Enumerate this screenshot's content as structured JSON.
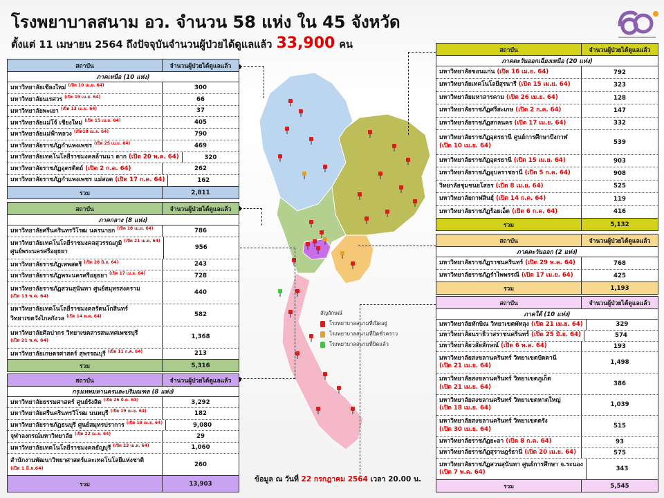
{
  "header": {
    "title": "โรงพยาบาลสนาม อว.  จำนวน 58 แห่ง ใน 45 จังหวัด",
    "subtitle_prefix": "ตั้งแต่  11 เมษายน 2564 ถึงปัจจุบันจำนวนผู้ป่วยได้ดูแลแล้ว",
    "total_patients": "33,900",
    "unit": "คน"
  },
  "column_headers": {
    "institution": "สถาบัน",
    "patients": "จำนวนผู้ป่วยได้ดูแลแล้ว",
    "total_label": "รวม"
  },
  "tables": {
    "north": {
      "color": "#b7cfe9",
      "region": "ภาคเหนือ (10 แห่ง)",
      "rows": [
        {
          "name": "มหาวิทยาลัยเชียงใหม่",
          "date": "(เปิด 10 เม.ย. 64)",
          "value": "300",
          "small": true
        },
        {
          "name": "มหาวิทยาลัยนเรศวร",
          "date": "(เปิด 19 เม.ย. 64)",
          "value": "66",
          "small": true
        },
        {
          "name": "มหาวิทยาลัยพะเยา",
          "date": "(เปิด 13 เม.ย. 64)",
          "value": "37",
          "small": true
        },
        {
          "name": "มหาวิทยาลัยแม่โจ้ เชียงใหม่",
          "date": "(เปิด 15 เม.ย. 64)",
          "value": "405",
          "small": true
        },
        {
          "name": "มหาวิทยาลัยแม่ฟ้าหลวง",
          "date": "(เปิด18 เม.ย. 64)",
          "value": "790",
          "small": true
        },
        {
          "name": "มหาวิทยาลัยราชภัฏกำแพงเพชร",
          "date": "(เปิด 25 เม.ย. 64)",
          "value": "469",
          "small": true
        },
        {
          "name": "มหาวิทยาลัยเทคโนโลยีราชมงคลล้านนา  ตาก",
          "date": "(เปิด 20 พ.ค. 64)",
          "value": "320"
        },
        {
          "name": "มหาวิทยาลัยราชภัฏอุตรดิตถ์",
          "date": "(เปิด 2 ก.ค. 64)",
          "value": "262"
        },
        {
          "name": "มหาวิทยาลัยราชภัฏกำแพงเพชร แม่สอด",
          "date": "(เปิด 17 ก.ค. 64)",
          "value": "162"
        }
      ],
      "total": "2,811"
    },
    "central": {
      "color": "#a9cc8c",
      "region": "ภาคกลาง (8 แห่ง)",
      "rows": [
        {
          "name": "มหาวิทยาลัยศรีนครินทรวิโรฒ นครนายก",
          "date": "(เปิด 18 เม.ย. 64)",
          "value": "786",
          "small": true
        },
        {
          "name": "มหาวิทยาลัยเทคโนโลยีราชมงคลสุวรรณภูมิ",
          "name2": "ศูนย์พระนครศรีอยุธยา",
          "date": "(เปิด 21 เม.ย. 64)",
          "value": "956",
          "small": true
        },
        {
          "name": "มหาวิทยาลัยราชภัฏเทพสตรี",
          "date": "(เปิด 28 มิ.ย. 64)",
          "value": "243",
          "small": true
        },
        {
          "name": "มหาวิทยาลัยราชภัฏพระนครศรีอยุธยา",
          "date": "(เปิด 17 เม.ย. 64)",
          "value": "728",
          "small": true
        },
        {
          "name": "มหาวิทยาลัยราชภัฏสวนสุนันทา ศูนย์สมุทรสงคราม",
          "date2": "(เปิด 13 พ.ค. 64)",
          "value": "440"
        },
        {
          "name": "มหาวิทยาลัยเทคโนโลยีราชมงคลรัตนโกสินทร์",
          "name2": "วิทยาเขตวังไกลกังวล",
          "date2": "(เปิด 14 พ.ค. 64)",
          "value": "582"
        },
        {
          "name": "มหาวิทยาลัยศิลปากร วิทยาเขตสารสนเทศเพชรบุรี",
          "date2": "(เปิด 21 พ.ค. 64)",
          "value": "1,368"
        },
        {
          "name": "มหาวิทยาลัยเกษตรศาสตร์ สุพรรณบุรี",
          "date": "(เปิด 11 ก.ค. 64)",
          "value": "213",
          "small": true
        }
      ],
      "total": "5,316"
    },
    "bangkok": {
      "color": "#c9a3f1",
      "region": "กรุงเทพมหานครและปริมณฑล (8 แห่ง)",
      "rows": [
        {
          "name": "มหาวิทยาลัยธรรมศาสตร์ ศูนย์รังสิต",
          "date": "(เปิด 26 มี.ค. 63)",
          "value": "3,292",
          "small": true
        },
        {
          "name": "มหาวิทยาลัยศรีนครินทรวิโรฒ นนทบุรี",
          "date": "(เปิด 19 เม.ย. 64)",
          "value": "182",
          "small": true
        },
        {
          "name": "มหาวิทยาลัยราชภัฏธนบุรี  ศูนย์สมุทรปราการ",
          "date": "(เปิด 10 เม.ย. 64)",
          "value": "9,080",
          "small": true
        },
        {
          "name": "จุฬาลงกรณ์มหาวิทยาลัย",
          "date": "(เปิด 22 เม.ย. 64)",
          "value": "29",
          "small": true
        },
        {
          "name": "มหาวิทยาลัยเทคโนโลยีราชมงคลธัญบุรี",
          "date": "(เปิด 23 เม.ย. 64)",
          "value": "1,060",
          "small": true
        },
        {
          "name": "สำนักงานพัฒนาวิทยาศาสตร์และเทคโนโลยีแห่งชาติ",
          "date2": "(เปิด 1 มิ.ย.64)",
          "value": "260"
        }
      ],
      "total": "13,903"
    },
    "northeast": {
      "color": "#d2d21a",
      "region": "ภาคตะวันออกเฉียงเหนือ  (20 แห่ง)",
      "rows": [
        {
          "name": "มหาวิทยาลัยขอนแก่น",
          "date": "(เปิด 16 เม.ย. 64)",
          "value": "792"
        },
        {
          "name": "มหาวิทยาลัยเทคโนโลยีสุรนารี",
          "date": "(เปิด 15 เม.ย. 64)",
          "value": "323"
        },
        {
          "name": "มหาวิทยาลัยมหาสารคาม",
          "date": "(เปิด 26 เม.ย. 64)",
          "value": "128"
        },
        {
          "name": "มหาวิทยาลัยราชภัฏศรีสะเกษ",
          "date": "(เปิด 2 ก.ค. 64)",
          "value": "147"
        },
        {
          "name": "มหาวิทยาลัยราชภัฏสกลนคร",
          "date": "(เปิด 17 เม.ย. 64)",
          "value": "332"
        },
        {
          "name": "มหาวิทยาลัยราชภัฏอุดรธานี ศูนย์การศึกษาบึงกาฬ",
          "date2": "(เปิด 10 เม.ย. 64)",
          "value": "539"
        },
        {
          "name": "มหาวิทยาลัยราชภัฏอุดรธานี",
          "date": "(เปิด 15 เม.ย. 64)",
          "value": "903"
        },
        {
          "name": "มหาวิทยาลัยราชภัฏอุบลราชธานี",
          "date": "(เปิด 5 ก.ค. 64)",
          "value": "908"
        },
        {
          "name": "วิทยาลัยชุมชนยโสธร",
          "date": "(เปิด 8 เม.ย. 64)",
          "value": "525"
        },
        {
          "name": "มหาวิทยาลัยกาฬสินธุ์",
          "date": "(เปิด 14 ก.ค. 64)",
          "value": "119"
        },
        {
          "name": "มหาวิทยาลัยราชภัฏร้อยเอ็ด",
          "date": "(เปิด 6 ก.ค. 64)",
          "value": "416"
        }
      ],
      "total": "5,132"
    },
    "east": {
      "color": "#f6d88f",
      "region": "ภาคตะวันออก (2 แห่ง)",
      "rows": [
        {
          "name": "มหาวิทยาลัยราชภัฏราชนครินทร์",
          "date": "(เปิด 29 พ.ค. 64)",
          "value": "768"
        },
        {
          "name": "มหาวิทยาลัยราชภัฏรำไพพรรณี",
          "date": "(เปิด 17 เม.ย. 64)",
          "value": "425"
        }
      ],
      "total": "1,193"
    },
    "south": {
      "color": "#f5d3f5",
      "region": "ภาคใต้  (10 แห่ง)",
      "rows": [
        {
          "name": "มหาวิทยาลัยทักษิณ วิทยาเขตพัทลุง",
          "date": "(เปิด 21 เม.ย. 64)",
          "value": "329"
        },
        {
          "name": "มหาวิทยาลัยนราธิวาสราชนครินทร์",
          "date": "(เปิด 25 มิ.ย. 64)",
          "value": "574"
        },
        {
          "name": "มหาวิทยาลัยวลัยลักษณ์",
          "date": "(เปิด 6 พ.ค. 64)",
          "value": "193"
        },
        {
          "name": "มหาวิทยาลัยสงขลานครินทร์ วิทยาเขตปัตตานี",
          "date2": "(เปิด 21 เม.ย. 64)",
          "value": "1,498"
        },
        {
          "name": "มหาวิทยาลัยสงขลานครินทร์ วิทยาเขตภูเก็ต",
          "date2": "(เปิด 21 เม.ย. 64)",
          "value": "386"
        },
        {
          "name": "มหาวิทยาลัยสงขลานครินทร์  วิทยาเขตหาดใหญ่",
          "date2": "(เปิด 18 เม.ย. 64)",
          "value": "1,039"
        },
        {
          "name": "มหาวิทยาลัยสงขลานครินทร์ วิทยาเขตตรัง",
          "date2": "(เปิด 30 เม.ย. 64)",
          "value": "515"
        },
        {
          "name": "มหาวิทยาลัยราชภัฏยะลา",
          "date": "(เปิด 8 ก.ค. 64)",
          "value": "93"
        },
        {
          "name": "มหาวิทยาลัยราชภัฏสุราษฎร์ธานี",
          "date": "(เปิด 20 เม.ย. 64)",
          "value": "575"
        },
        {
          "name": "มหาวิทยาลัยราชภัฏสวนสุนันทา ศูนย์การศึกษา จ.ระนอง",
          "date2": "(เปิด 7 พ.ค. 64)",
          "value": "343"
        }
      ],
      "total": "5,545"
    }
  },
  "legend": {
    "title": "สัญลักษณ์",
    "items": [
      {
        "label": "โรงพยาบาลสนามที่เปิดอยู่",
        "color": "#e01b1b"
      },
      {
        "label": "โรงพยาบาลสนามที่ปิดชั่วคราว",
        "color": "#e8a020"
      },
      {
        "label": "โรงพยาบาลสนามที่ปิดแล้ว",
        "color": "#3cc83c"
      }
    ]
  },
  "map_regions": {
    "north": "#bcd6f0",
    "northeast": "#bdbd5a",
    "central": "#b3d08e",
    "east": "#f4c877",
    "bangkok": "#c86ee8",
    "south": "#f5b8c8"
  },
  "footer": {
    "prefix": "ข้อมูล ณ วันที่",
    "date": "22 กรกฎาคม 2564",
    "suffix": "เวลา 20.00 น."
  },
  "logo": {
    "text": "๖๐"
  }
}
